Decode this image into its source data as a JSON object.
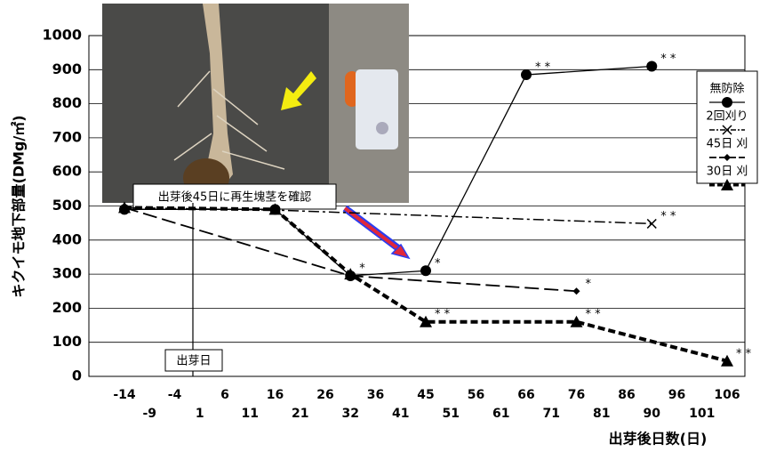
{
  "chart_data": {
    "type": "line",
    "y_label": "キクイモ地下部量(DMg/㎡)",
    "x_label": "出芽後日数(日)",
    "categories": [
      -14,
      -9,
      -4,
      1,
      6,
      11,
      16,
      21,
      26,
      32,
      36,
      41,
      45,
      51,
      56,
      61,
      66,
      71,
      76,
      81,
      86,
      90,
      96,
      101,
      106
    ],
    "ylim": [
      0,
      1000
    ],
    "yticks": [
      0,
      100,
      200,
      300,
      400,
      500,
      600,
      700,
      800,
      900,
      1000
    ],
    "grid": true,
    "series": [
      {
        "name": "無防除",
        "color": "#000000",
        "marker": "circle",
        "dash": "solid",
        "x": [
          -14,
          16,
          32,
          45,
          66,
          90
        ],
        "values": [
          490,
          490,
          295,
          310,
          885,
          910
        ],
        "notes": [
          null,
          null,
          "*",
          "*",
          "* *",
          "* *"
        ]
      },
      {
        "name": "2回刈り",
        "color": "#000000",
        "marker": "cross",
        "dash": "dashdot",
        "x": [
          -14,
          16,
          90
        ],
        "values": [
          495,
          488,
          448
        ],
        "notes": [
          null,
          null,
          "* *"
        ]
      },
      {
        "name": "45日 刈",
        "color": "#000000",
        "marker": "diamond",
        "dash": "longdash",
        "x": [
          -14,
          32,
          76
        ],
        "values": [
          495,
          295,
          250
        ],
        "notes": [
          null,
          null,
          "*"
        ]
      },
      {
        "name": "30日 刈",
        "color": "#000000",
        "marker": "triangle",
        "dash": "thickdash",
        "x": [
          -14,
          16,
          32,
          45,
          76,
          106
        ],
        "values": [
          495,
          490,
          300,
          160,
          160,
          45
        ],
        "notes": [
          null,
          null,
          null,
          "* *",
          "* *",
          "* *"
        ]
      }
    ],
    "emergence_label": "出芽日",
    "photo_caption": "出芽後45日に再生塊茎を確認"
  }
}
